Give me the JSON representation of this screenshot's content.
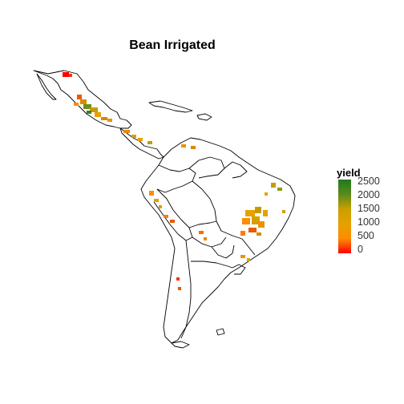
{
  "title": "Bean Irrigated",
  "legend": {
    "title": "yield",
    "ticks": [
      "2500",
      "2000",
      "1500",
      "1000",
      "500",
      "0"
    ],
    "colors": [
      "#ff0000",
      "#ff8c00",
      "#e6a100",
      "#c8a000",
      "#5a8a1a",
      "#1f7a1f"
    ]
  },
  "chart_data": {
    "type": "heatmap",
    "title": "Bean Irrigated",
    "color_variable": "yield",
    "scale_range": [
      0,
      2500
    ],
    "scale_ticks": [
      0,
      500,
      1000,
      1500,
      2000,
      2500
    ],
    "region": "Latin America"
  }
}
